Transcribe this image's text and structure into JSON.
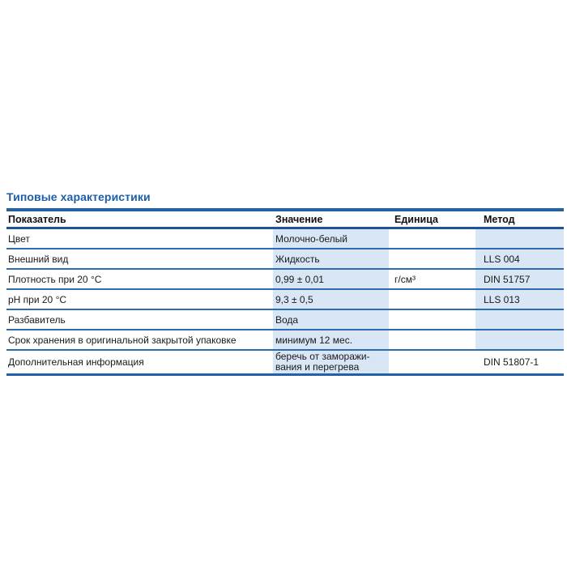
{
  "section": {
    "title": "Типовые характеристики"
  },
  "table": {
    "headers": {
      "indicator": "Показатель",
      "value": "Значение",
      "unit": "Единица",
      "method": "Метод"
    },
    "colors": {
      "highlight_cell": "#d9e6f6",
      "row_rule": "#2e6cb2",
      "thick_rule": "#2161aa",
      "title_blue": "#1d5fa7"
    },
    "rows": [
      {
        "indicator": "Цвет",
        "value": "Молочно-белый",
        "unit": "",
        "method": ""
      },
      {
        "indicator": "Внешний вид",
        "value": "Жидкость",
        "unit": "",
        "method": "LLS 004"
      },
      {
        "indicator": "Плотность при 20 °C",
        "value": "0,99 ± 0,01",
        "unit": "г/см³",
        "method": "DIN 51757"
      },
      {
        "indicator": "pH при 20 °C",
        "value": "9,3 ± 0,5",
        "unit": "",
        "method": "LLS 013"
      },
      {
        "indicator": "Разбавитель",
        "value": "Вода",
        "unit": "",
        "method": ""
      },
      {
        "indicator": "Срок хранения в оригинальной закрытой упаковке",
        "value": "минимум 12 мес.",
        "unit": "",
        "method": ""
      },
      {
        "indicator": "Дополнительная информация",
        "value": "беречь от заморажи-\nвания и перегрева",
        "unit": "",
        "method": "DIN 51807-1"
      }
    ]
  }
}
